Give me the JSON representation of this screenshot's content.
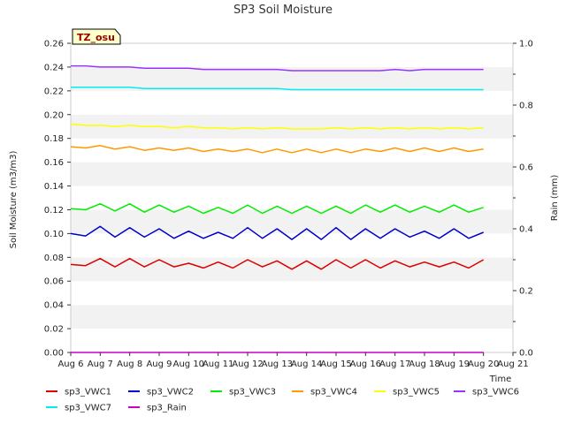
{
  "chart_data": {
    "type": "line",
    "title": "SP3 Soil Moisture",
    "badge": "TZ_osu",
    "xlabel": "Time",
    "ylabel": "Soil Moisture (m3/m3)",
    "y2label": "Rain (mm)",
    "x_ticks": [
      "Aug 6",
      "Aug 7",
      "Aug 8",
      "Aug 9",
      "Aug 10",
      "Aug 11",
      "Aug 12",
      "Aug 13",
      "Aug 14",
      "Aug 15",
      "Aug 16",
      "Aug 17",
      "Aug 18",
      "Aug 19",
      "Aug 20",
      "Aug 21"
    ],
    "x": [
      6,
      6.5,
      7,
      7.5,
      8,
      8.5,
      9,
      9.5,
      10,
      10.5,
      11,
      11.5,
      12,
      12.5,
      13,
      13.5,
      14,
      14.5,
      15,
      15.5,
      16,
      16.5,
      17,
      17.5,
      18,
      18.5,
      19,
      19.5,
      20
    ],
    "xlim": [
      6,
      21
    ],
    "ylim": [
      0,
      0.26
    ],
    "y_ticks": [
      "0.00",
      "0.02",
      "0.04",
      "0.06",
      "0.08",
      "0.10",
      "0.12",
      "0.14",
      "0.16",
      "0.18",
      "0.20",
      "0.22",
      "0.24",
      "0.26"
    ],
    "y2lim": [
      0,
      1.0
    ],
    "y2_ticks": [
      "0.0",
      "0.2",
      "0.4",
      "0.6",
      "0.8",
      "1.0"
    ],
    "grid": true,
    "legend_position": "bottom",
    "series": [
      {
        "name": "sp3_VWC1",
        "color": "#dd0000",
        "axis": "left",
        "values": [
          0.074,
          0.073,
          0.079,
          0.072,
          0.079,
          0.072,
          0.078,
          0.072,
          0.075,
          0.071,
          0.076,
          0.071,
          0.078,
          0.072,
          0.077,
          0.07,
          0.077,
          0.07,
          0.078,
          0.071,
          0.078,
          0.071,
          0.077,
          0.072,
          0.076,
          0.072,
          0.076,
          0.071,
          0.078
        ]
      },
      {
        "name": "sp3_VWC2",
        "color": "#0000cc",
        "axis": "left",
        "values": [
          0.1,
          0.098,
          0.106,
          0.097,
          0.105,
          0.097,
          0.104,
          0.096,
          0.102,
          0.096,
          0.101,
          0.096,
          0.105,
          0.096,
          0.104,
          0.095,
          0.104,
          0.095,
          0.105,
          0.095,
          0.104,
          0.096,
          0.104,
          0.097,
          0.102,
          0.096,
          0.104,
          0.096,
          0.101
        ]
      },
      {
        "name": "sp3_VWC3",
        "color": "#00ee00",
        "axis": "left",
        "values": [
          0.121,
          0.12,
          0.125,
          0.119,
          0.125,
          0.118,
          0.124,
          0.118,
          0.123,
          0.117,
          0.122,
          0.117,
          0.124,
          0.117,
          0.123,
          0.117,
          0.123,
          0.117,
          0.123,
          0.117,
          0.124,
          0.118,
          0.124,
          0.118,
          0.123,
          0.118,
          0.124,
          0.118,
          0.122
        ]
      },
      {
        "name": "sp3_VWC4",
        "color": "#ff9900",
        "axis": "left",
        "values": [
          0.173,
          0.172,
          0.174,
          0.171,
          0.173,
          0.17,
          0.172,
          0.17,
          0.172,
          0.169,
          0.171,
          0.169,
          0.171,
          0.168,
          0.171,
          0.168,
          0.171,
          0.168,
          0.171,
          0.168,
          0.171,
          0.169,
          0.172,
          0.169,
          0.172,
          0.169,
          0.172,
          0.169,
          0.171
        ]
      },
      {
        "name": "sp3_VWC5",
        "color": "#ffff00",
        "axis": "left",
        "values": [
          0.192,
          0.191,
          0.191,
          0.19,
          0.191,
          0.19,
          0.19,
          0.189,
          0.19,
          0.189,
          0.189,
          0.188,
          0.189,
          0.188,
          0.189,
          0.188,
          0.188,
          0.188,
          0.189,
          0.188,
          0.189,
          0.188,
          0.189,
          0.188,
          0.189,
          0.188,
          0.189,
          0.188,
          0.189
        ]
      },
      {
        "name": "sp3_VWC6",
        "color": "#9933ff",
        "axis": "left",
        "values": [
          0.241,
          0.241,
          0.24,
          0.24,
          0.24,
          0.239,
          0.239,
          0.239,
          0.239,
          0.238,
          0.238,
          0.238,
          0.238,
          0.238,
          0.238,
          0.237,
          0.237,
          0.237,
          0.237,
          0.237,
          0.237,
          0.237,
          0.238,
          0.237,
          0.238,
          0.238,
          0.238,
          0.238,
          0.238
        ]
      },
      {
        "name": "sp3_VWC7",
        "color": "#00eeee",
        "axis": "left",
        "values": [
          0.223,
          0.223,
          0.223,
          0.223,
          0.223,
          0.222,
          0.222,
          0.222,
          0.222,
          0.222,
          0.222,
          0.222,
          0.222,
          0.222,
          0.222,
          0.221,
          0.221,
          0.221,
          0.221,
          0.221,
          0.221,
          0.221,
          0.221,
          0.221,
          0.221,
          0.221,
          0.221,
          0.221,
          0.221
        ]
      },
      {
        "name": "sp3_Rain",
        "color": "#cc00cc",
        "axis": "right",
        "values": [
          0,
          0,
          0,
          0,
          0,
          0,
          0,
          0,
          0,
          0,
          0,
          0,
          0,
          0,
          0,
          0,
          0,
          0,
          0,
          0,
          0,
          0,
          0,
          0,
          0,
          0,
          0,
          0,
          0
        ]
      }
    ]
  }
}
